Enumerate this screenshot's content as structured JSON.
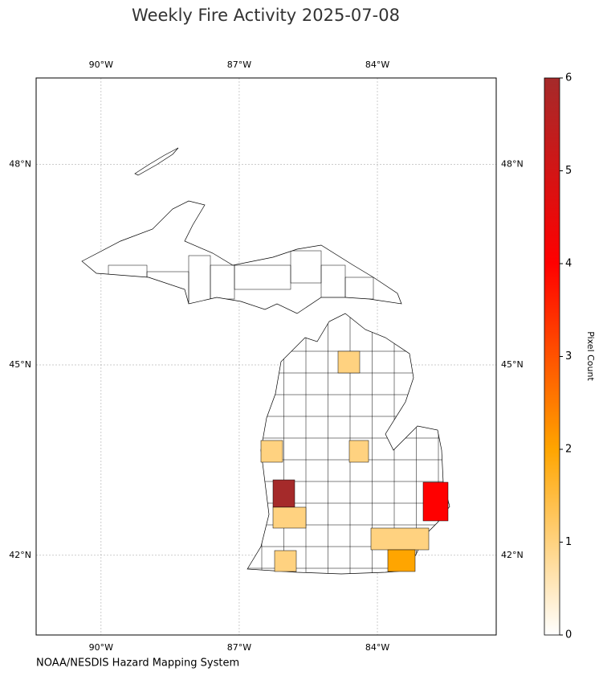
{
  "chart_data": {
    "type": "choropleth",
    "title": "Weekly Fire Activity 2025-07-08",
    "xlim": [
      -91.41,
      -81.42
    ],
    "ylim": [
      40.7,
      49.24
    ],
    "xticks": [
      {
        "value": -90,
        "label": "90°W"
      },
      {
        "value": -87,
        "label": "87°W"
      },
      {
        "value": -84,
        "label": "84°W"
      }
    ],
    "yticks": [
      {
        "value": 42,
        "label": "42°N"
      },
      {
        "value": 45,
        "label": "45°N"
      },
      {
        "value": 48,
        "label": "48°N"
      }
    ],
    "grid": true,
    "values": [
      1,
      1,
      1,
      6,
      4,
      1,
      1,
      2,
      1
    ],
    "colorbar": {
      "label": "Pixel Count",
      "clim": [
        0,
        6
      ],
      "ticks": [
        0,
        1,
        2,
        3,
        4,
        5,
        6
      ],
      "colors": [
        "#ffffff",
        "#ffa500",
        "#ff0000",
        "#a52a2a"
      ]
    },
    "source": "NOAA/NESDIS Hazard Mapping System"
  }
}
